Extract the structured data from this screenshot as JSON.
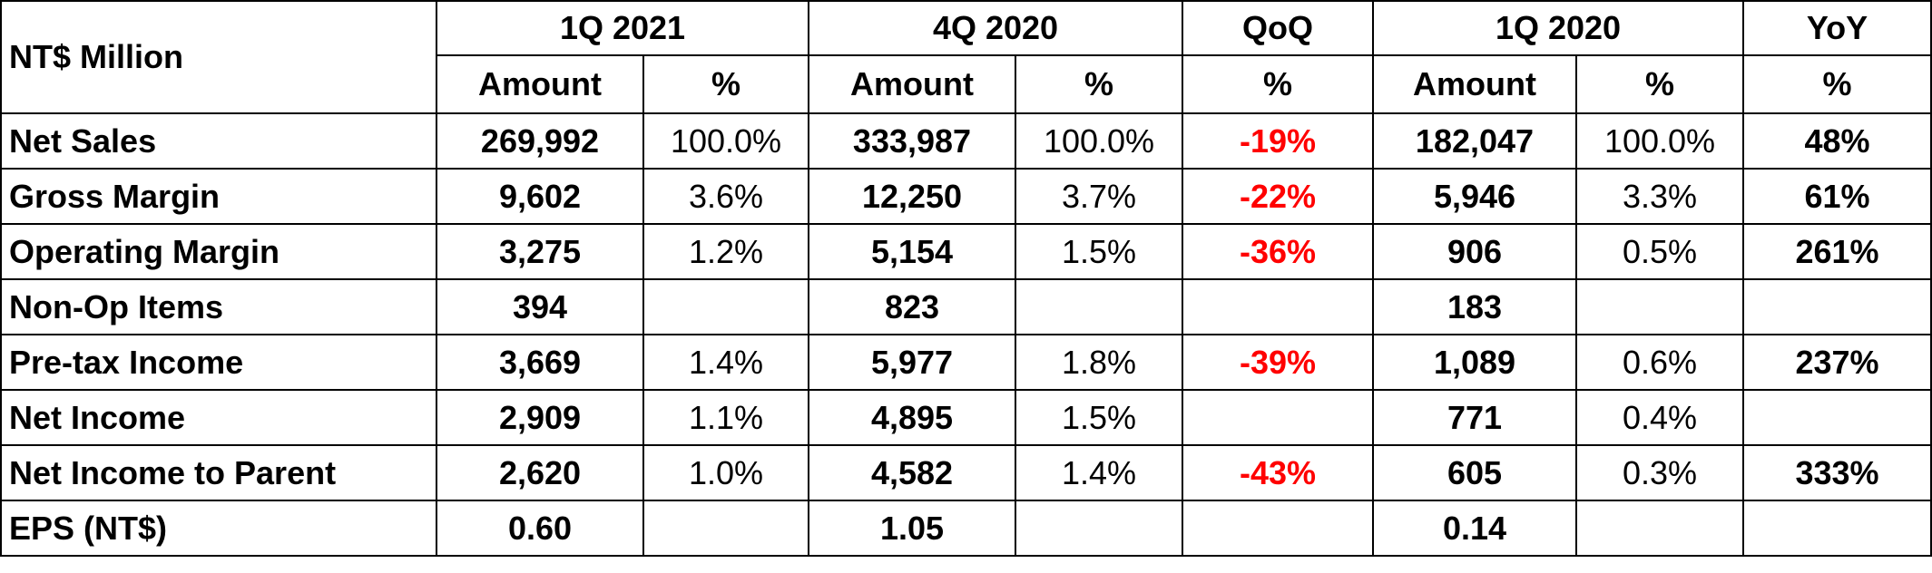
{
  "table": {
    "corner_label": "NT$ Million",
    "periods": [
      {
        "label": "1Q 2021",
        "sub": [
          "Amount",
          "%"
        ]
      },
      {
        "label": "4Q 2020",
        "sub": [
          "Amount",
          "%"
        ]
      },
      {
        "label": "QoQ",
        "sub": [
          "%"
        ]
      },
      {
        "label": "1Q 2020",
        "sub": [
          "Amount",
          "%"
        ]
      },
      {
        "label": "YoY",
        "sub": [
          "%"
        ]
      }
    ],
    "rows": [
      {
        "label": "Net Sales",
        "q1_2021_amount": "269,992",
        "q1_2021_pct": "100.0%",
        "q4_2020_amount": "333,987",
        "q4_2020_pct": "100.0%",
        "qoq": "-19%",
        "q1_2020_amount": "182,047",
        "q1_2020_pct": "100.0%",
        "yoy": "48%"
      },
      {
        "label": "Gross Margin",
        "q1_2021_amount": "9,602",
        "q1_2021_pct": "3.6%",
        "q4_2020_amount": "12,250",
        "q4_2020_pct": "3.7%",
        "qoq": "-22%",
        "q1_2020_amount": "5,946",
        "q1_2020_pct": "3.3%",
        "yoy": "61%"
      },
      {
        "label": "Operating Margin",
        "q1_2021_amount": "3,275",
        "q1_2021_pct": "1.2%",
        "q4_2020_amount": "5,154",
        "q4_2020_pct": "1.5%",
        "qoq": "-36%",
        "q1_2020_amount": "906",
        "q1_2020_pct": "0.5%",
        "yoy": "261%"
      },
      {
        "label": "Non-Op Items",
        "q1_2021_amount": "394",
        "q1_2021_pct": "",
        "q4_2020_amount": "823",
        "q4_2020_pct": "",
        "qoq": "",
        "q1_2020_amount": "183",
        "q1_2020_pct": "",
        "yoy": ""
      },
      {
        "label": "Pre-tax Income",
        "q1_2021_amount": "3,669",
        "q1_2021_pct": "1.4%",
        "q4_2020_amount": "5,977",
        "q4_2020_pct": "1.8%",
        "qoq": "-39%",
        "q1_2020_amount": "1,089",
        "q1_2020_pct": "0.6%",
        "yoy": "237%"
      },
      {
        "label": "Net Income",
        "q1_2021_amount": "2,909",
        "q1_2021_pct": "1.1%",
        "q4_2020_amount": "4,895",
        "q4_2020_pct": "1.5%",
        "qoq": "",
        "q1_2020_amount": "771",
        "q1_2020_pct": "0.4%",
        "yoy": ""
      },
      {
        "label": "Net Income to Parent",
        "q1_2021_amount": "2,620",
        "q1_2021_pct": "1.0%",
        "q4_2020_amount": "4,582",
        "q4_2020_pct": "1.4%",
        "qoq": "-43%",
        "q1_2020_amount": "605",
        "q1_2020_pct": "0.3%",
        "yoy": "333%"
      },
      {
        "label": "EPS (NT$)",
        "q1_2021_amount": "0.60",
        "q1_2021_pct": "",
        "q4_2020_amount": "1.05",
        "q4_2020_pct": "",
        "qoq": "",
        "q1_2020_amount": "0.14",
        "q1_2020_pct": "",
        "yoy": ""
      }
    ]
  },
  "colors": {
    "negative_change": "#ff0000",
    "text": "#000000",
    "border": "#000000",
    "background": "#ffffff"
  }
}
